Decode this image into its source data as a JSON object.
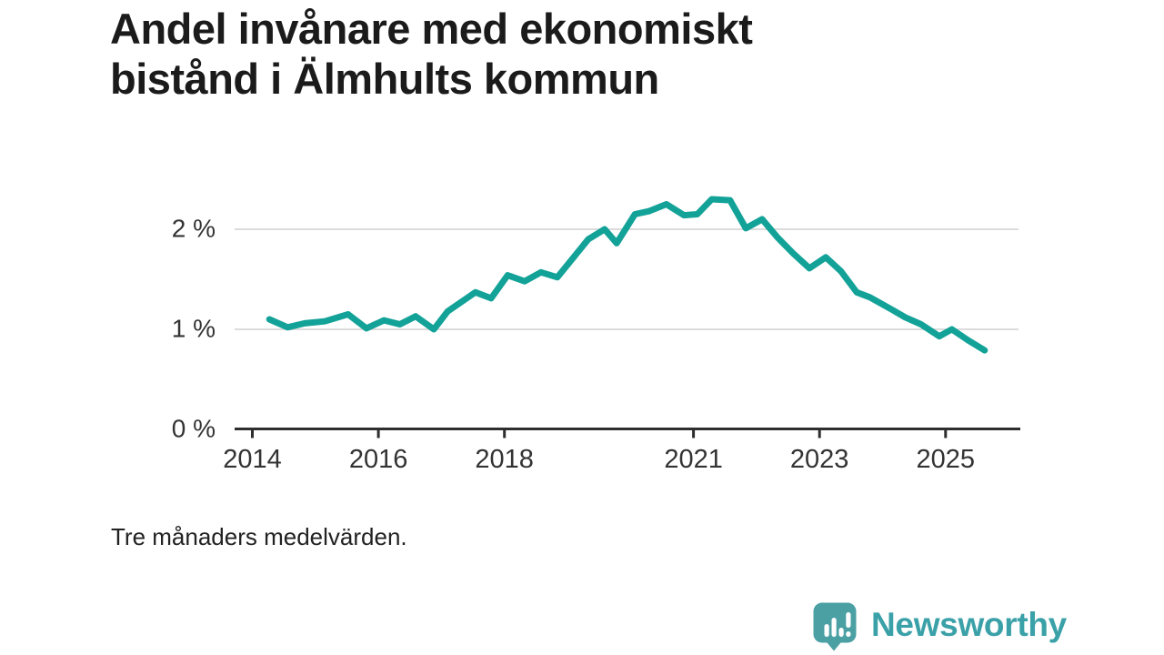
{
  "header": {
    "title_line1": "Andel invånare med ekonomiskt",
    "title_line2": "bistånd i Älmhults kommun"
  },
  "footnote": "Tre månaders medelvärden.",
  "branding": {
    "name": "Newsworthy",
    "icon": "speech-bubble-bar-chart-icon",
    "icon_color": "#4ba0a4",
    "text_color": "#3ba1a8"
  },
  "colors": {
    "line": "#13a298",
    "grid": "#dcdcdc",
    "axis": "#2e2e2e",
    "tick_text": "#333333",
    "title_text": "#1b1b1b"
  },
  "chart_data": {
    "type": "line",
    "title": "Andel invånare med ekonomiskt bistånd i Älmhults kommun",
    "note": "Tre månaders medelvärden.",
    "xlabel": "",
    "ylabel": "",
    "grid": "horizontal",
    "legend": "none",
    "ylim": [
      0,
      2.45
    ],
    "xlim": [
      2013.7,
      2026.2
    ],
    "yticks": [
      {
        "value": 0,
        "label": "0 %"
      },
      {
        "value": 1,
        "label": "1 %"
      },
      {
        "value": 2,
        "label": "2 %"
      }
    ],
    "xticks": [
      {
        "value": 2014,
        "label": "2014"
      },
      {
        "value": 2016,
        "label": "2016"
      },
      {
        "value": 2018,
        "label": "2018"
      },
      {
        "value": 2021,
        "label": "2021"
      },
      {
        "value": 2023,
        "label": "2023"
      },
      {
        "value": 2025,
        "label": "2025"
      }
    ],
    "series": [
      {
        "name": "Andel invånare med ekonomiskt bistånd",
        "unit": "%",
        "color": "#13a298",
        "points": [
          [
            2014.27,
            1.1
          ],
          [
            2014.56,
            1.02
          ],
          [
            2014.83,
            1.06
          ],
          [
            2015.15,
            1.08
          ],
          [
            2015.52,
            1.15
          ],
          [
            2015.81,
            1.01
          ],
          [
            2016.09,
            1.09
          ],
          [
            2016.34,
            1.05
          ],
          [
            2016.59,
            1.13
          ],
          [
            2016.88,
            1.0
          ],
          [
            2017.1,
            1.18
          ],
          [
            2017.54,
            1.37
          ],
          [
            2017.79,
            1.31
          ],
          [
            2018.05,
            1.54
          ],
          [
            2018.32,
            1.48
          ],
          [
            2018.58,
            1.57
          ],
          [
            2018.84,
            1.52
          ],
          [
            2019.33,
            1.9
          ],
          [
            2019.59,
            2.0
          ],
          [
            2019.78,
            1.86
          ],
          [
            2020.07,
            2.15
          ],
          [
            2020.29,
            2.18
          ],
          [
            2020.57,
            2.25
          ],
          [
            2020.85,
            2.14
          ],
          [
            2021.06,
            2.15
          ],
          [
            2021.29,
            2.3
          ],
          [
            2021.58,
            2.29
          ],
          [
            2021.83,
            2.01
          ],
          [
            2022.09,
            2.1
          ],
          [
            2022.33,
            1.92
          ],
          [
            2022.58,
            1.76
          ],
          [
            2022.84,
            1.61
          ],
          [
            2023.1,
            1.72
          ],
          [
            2023.34,
            1.58
          ],
          [
            2023.59,
            1.37
          ],
          [
            2023.8,
            1.32
          ],
          [
            2024.14,
            1.2
          ],
          [
            2024.36,
            1.12
          ],
          [
            2024.61,
            1.05
          ],
          [
            2024.9,
            0.93
          ],
          [
            2025.1,
            1.0
          ],
          [
            2025.36,
            0.89
          ],
          [
            2025.62,
            0.79
          ]
        ]
      }
    ]
  }
}
